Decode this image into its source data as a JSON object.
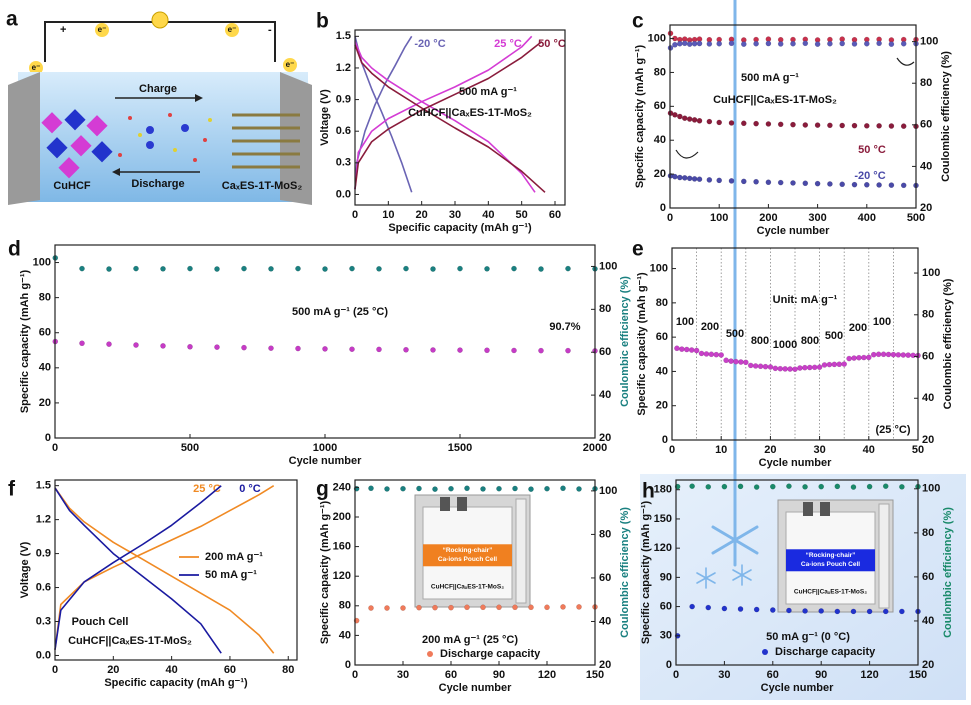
{
  "chart_data": [
    {
      "type": "diagram",
      "panel": "a",
      "labels": {
        "plus": "+",
        "minus": "-",
        "electron": "e⁻",
        "charge": "Charge",
        "discharge": "Discharge",
        "cathode": "CuHCF",
        "anode": "CaₓES-1T-MoS₂"
      }
    },
    {
      "type": "line",
      "panel": "b",
      "xlabel": "Specific capacity (mAh g⁻¹)",
      "ylabel": "Voltage (V)",
      "xlim": [
        0,
        63
      ],
      "ylim": [
        -0.1,
        1.56
      ],
      "xticks": [
        0,
        10,
        20,
        30,
        40,
        50,
        60
      ],
      "yticks": [
        {
          "value": 0,
          "label": "0.0"
        },
        0.3,
        0.6,
        0.9,
        1.2,
        1.5
      ],
      "legend": "direct",
      "annotations": [
        "500 mA g⁻¹",
        "CuHCF||CaₓES-1T-MoS₂"
      ],
      "series": [
        {
          "name": "-20 °C",
          "color": "#6a64b4",
          "x": [
            0,
            0.5,
            3,
            6,
            9,
            12,
            15,
            17,
            null,
            0,
            2,
            5,
            8,
            11,
            14,
            17
          ],
          "values": [
            0.05,
            0.3,
            0.6,
            0.85,
            1.05,
            1.22,
            1.4,
            1.5,
            null,
            1.5,
            1.25,
            1.0,
            0.78,
            0.55,
            0.3,
            0.02
          ]
        },
        {
          "name": "25 °C",
          "color": "#d43cd4",
          "x": [
            0,
            1,
            5,
            10,
            20,
            30,
            40,
            50,
            53,
            null,
            0,
            2,
            5,
            10,
            20,
            30,
            40,
            50,
            54
          ],
          "values": [
            0.05,
            0.4,
            0.6,
            0.72,
            0.88,
            1.02,
            1.18,
            1.4,
            1.5,
            null,
            1.45,
            1.3,
            1.2,
            1.08,
            0.88,
            0.7,
            0.5,
            0.2,
            0.02
          ]
        },
        {
          "name": "50 °C",
          "color": "#8a1c3c",
          "x": [
            0,
            1,
            5,
            10,
            20,
            30,
            40,
            50,
            56,
            null,
            0,
            2,
            5,
            10,
            20,
            30,
            40,
            50,
            57
          ],
          "values": [
            0.05,
            0.3,
            0.5,
            0.62,
            0.8,
            0.95,
            1.1,
            1.3,
            1.45,
            null,
            1.42,
            1.25,
            1.15,
            1.02,
            0.82,
            0.63,
            0.45,
            0.22,
            0.02
          ]
        }
      ]
    },
    {
      "type": "scatter",
      "panel": "c",
      "xlabel": "Cycle number",
      "ylabel": "Specific capacity (mAh g⁻¹)",
      "y2label": "Coulombic efficiency (%)",
      "xlim": [
        0,
        500
      ],
      "ylim": [
        0,
        108
      ],
      "y2lim": [
        20,
        108
      ],
      "xticks": [
        0,
        100,
        200,
        300,
        400,
        500
      ],
      "yticks": [
        0,
        20,
        40,
        60,
        80,
        100
      ],
      "y2ticks": [
        20,
        40,
        60,
        80,
        100
      ],
      "legend": "direct",
      "annotations": [
        "500 mA g⁻¹",
        "CuHCF||CaₓES-1T-MoS₂"
      ],
      "x": [
        1,
        10,
        20,
        30,
        40,
        50,
        60,
        80,
        100,
        125,
        150,
        175,
        200,
        225,
        250,
        275,
        300,
        325,
        350,
        375,
        400,
        425,
        450,
        475,
        500
      ],
      "series": [
        {
          "name": "50 °C",
          "color": "#8a1c3c",
          "values": [
            56,
            55,
            54,
            53,
            52.5,
            52,
            51.5,
            51,
            50.5,
            50.2,
            50,
            49.8,
            49.6,
            49.4,
            49.2,
            49,
            48.9,
            48.8,
            48.7,
            48.6,
            48.5,
            48.5,
            48.4,
            48.3,
            48.2
          ]
        },
        {
          "color": "#c8304c",
          "axis": "y2",
          "values": [
            104,
            101.5,
            101,
            101.2,
            100.8,
            101,
            101.2,
            100.9,
            101,
            101.1,
            100.8,
            101,
            101.2,
            100.9,
            101,
            101.1,
            100.8,
            101,
            101.2,
            100.9,
            101,
            101.1,
            100.8,
            101,
            101
          ]
        },
        {
          "name": "-20 °C",
          "color": "#4a4aa8",
          "values": [
            19,
            18.5,
            18,
            17.8,
            17.5,
            17.2,
            17,
            16.6,
            16.3,
            16,
            15.7,
            15.5,
            15.2,
            15,
            14.8,
            14.6,
            14.4,
            14.2,
            14,
            13.8,
            13.7,
            13.6,
            13.5,
            13.4,
            13.3
          ]
        },
        {
          "color": "#5a5ab8",
          "axis": "y2",
          "values": [
            97,
            98.5,
            99,
            99.2,
            98.8,
            99,
            99.1,
            98.9,
            99,
            99.2,
            98.8,
            99,
            99.1,
            98.9,
            99,
            99.2,
            98.8,
            99,
            99.1,
            98.9,
            99,
            99.2,
            98.8,
            99,
            99
          ]
        }
      ]
    },
    {
      "type": "scatter",
      "panel": "d",
      "xlabel": "Cycle number",
      "ylabel": "Specific capacity (mAh g⁻¹)",
      "y2label": "Coulombic efficiency (%)",
      "y2label_color": "#1a8080",
      "xlim": [
        0,
        2000
      ],
      "ylim": [
        0,
        110
      ],
      "y2lim": [
        20,
        110
      ],
      "xticks": [
        0,
        500,
        1000,
        1500,
        2000
      ],
      "yticks": [
        0,
        20,
        40,
        60,
        80,
        100
      ],
      "y2ticks": [
        20,
        40,
        60,
        80,
        100
      ],
      "annotations": [
        "500 mA g⁻¹ (25 °C)",
        "90.7%"
      ],
      "x": [
        1,
        100,
        200,
        300,
        400,
        500,
        600,
        700,
        800,
        900,
        1000,
        1100,
        1200,
        1300,
        1400,
        1500,
        1600,
        1700,
        1800,
        1900,
        2000
      ],
      "series": [
        {
          "color": "#c63bc6",
          "values": [
            55,
            54,
            53.5,
            53,
            52.5,
            52,
            51.8,
            51.5,
            51.2,
            51,
            50.8,
            50.6,
            50.5,
            50.3,
            50.2,
            50.1,
            50,
            49.9,
            49.8,
            49.8,
            49.7
          ]
        },
        {
          "color": "#1a8080",
          "axis": "y2",
          "values": [
            104,
            99,
            98.8,
            99,
            98.9,
            99,
            98.8,
            99,
            98.9,
            99,
            98.8,
            99,
            98.9,
            99,
            98.8,
            99,
            98.9,
            99,
            98.8,
            99,
            98.9
          ]
        }
      ]
    },
    {
      "type": "scatter",
      "panel": "e",
      "xlabel": "Cycle number",
      "ylabel": "Specific capacity (mAh g⁻¹)",
      "y2label": "Coulombic efficiency (%)",
      "xlim": [
        0,
        50
      ],
      "ylim": [
        0,
        112
      ],
      "y2lim": [
        20,
        112
      ],
      "xticks": [
        0,
        10,
        20,
        30,
        40,
        50
      ],
      "yticks": [
        0,
        20,
        40,
        60,
        80,
        100
      ],
      "y2ticks": [
        20,
        40,
        60,
        80,
        100
      ],
      "vlines": [
        5,
        10,
        15,
        20,
        25,
        30,
        35,
        40,
        45
      ],
      "annotations": [
        "Unit: mA g⁻¹",
        "(25 °C)",
        "100",
        "200",
        "500",
        "800",
        "1000",
        "800",
        "500",
        "200",
        "100"
      ],
      "x": [
        1,
        2,
        3,
        4,
        5,
        6,
        7,
        8,
        9,
        10,
        11,
        12,
        13,
        14,
        15,
        16,
        17,
        18,
        19,
        20,
        21,
        22,
        23,
        24,
        25,
        26,
        27,
        28,
        29,
        30,
        31,
        32,
        33,
        34,
        35,
        36,
        37,
        38,
        39,
        40,
        41,
        42,
        43,
        44,
        45,
        46,
        47,
        48,
        49,
        50
      ],
      "series": [
        {
          "color": "#c840c8",
          "values": [
            53.5,
            53,
            52.8,
            52.5,
            52.2,
            50.5,
            50.2,
            50,
            49.8,
            49.6,
            46.5,
            46,
            45.7,
            45.5,
            45.3,
            43.5,
            43.2,
            43,
            42.8,
            42.6,
            41.8,
            41.6,
            41.5,
            41.4,
            41.3,
            42,
            42.2,
            42.3,
            42.4,
            42.5,
            43.8,
            44,
            44.1,
            44.2,
            44.3,
            47.5,
            47.8,
            48,
            48.1,
            48.2,
            49.8,
            50,
            50,
            49.9,
            49.8,
            49.7,
            49.6,
            49.5,
            49.4,
            49.3
          ]
        }
      ]
    },
    {
      "type": "line",
      "panel": "f",
      "xlabel": "Specific capacity (mAh g⁻¹)",
      "ylabel": "Voltage (V)",
      "xlim": [
        0,
        83
      ],
      "ylim": [
        -0.04,
        1.55
      ],
      "xticks": [
        0,
        20,
        40,
        60,
        80
      ],
      "yticks": [
        {
          "value": 0,
          "label": "0.0"
        },
        0.3,
        0.6,
        0.9,
        1.2,
        1.5
      ],
      "legend": "center right",
      "annotations": [
        "Pouch Cell",
        "CuHCF||CaₓES-1T-MoS₂"
      ],
      "series": [
        {
          "name": "200 mA g⁻¹",
          "label": "25 °C",
          "color": "#f08a24",
          "x": [
            0,
            2,
            10,
            20,
            30,
            40,
            50,
            60,
            70,
            75,
            null,
            0,
            5,
            10,
            20,
            30,
            40,
            50,
            60,
            70,
            75
          ],
          "values": [
            0.05,
            0.45,
            0.65,
            0.78,
            0.9,
            1.02,
            1.14,
            1.28,
            1.42,
            1.5,
            null,
            1.48,
            1.3,
            1.18,
            1.0,
            0.85,
            0.7,
            0.55,
            0.4,
            0.18,
            0.02
          ]
        },
        {
          "name": "50 mA g⁻¹",
          "label": "0 °C",
          "color": "#1a1aa0",
          "x": [
            0,
            2,
            10,
            20,
            30,
            40,
            50,
            57,
            null,
            0,
            5,
            10,
            20,
            30,
            40,
            50,
            57
          ],
          "values": [
            0.05,
            0.4,
            0.65,
            0.82,
            0.98,
            1.15,
            1.35,
            1.5,
            null,
            1.48,
            1.28,
            1.15,
            0.9,
            0.7,
            0.5,
            0.28,
            0.02
          ]
        }
      ]
    },
    {
      "type": "scatter",
      "panel": "g",
      "xlabel": "Cycle number",
      "ylabel": "Specific capacity (mAh g⁻¹)",
      "y2label": "Coulombic efficiency (%)",
      "y2label_color": "#1a8080",
      "xlim": [
        0,
        150
      ],
      "ylim": [
        0,
        250
      ],
      "y2lim": [
        20,
        105
      ],
      "xticks": [
        0,
        30,
        60,
        90,
        120,
        150
      ],
      "yticks": [
        0,
        40,
        80,
        120,
        160,
        200,
        240
      ],
      "y2ticks": [
        20,
        40,
        60,
        80,
        100
      ],
      "legend": "lower center",
      "annotations": [
        "200 mA g⁻¹ (25 °C)"
      ],
      "inset": {
        "title": "“Rocking-chair”",
        "subtitle": "Ca-ions Pouch Cell",
        "label": "CuHCF||CaₓES-1T-MoS₂",
        "color": "#f08020"
      },
      "x": [
        1,
        10,
        20,
        30,
        40,
        50,
        60,
        70,
        80,
        90,
        100,
        110,
        120,
        130,
        140,
        150
      ],
      "series": [
        {
          "name": "Discharge capacity",
          "color": "#f07a5a",
          "values": [
            60,
            77,
            77,
            77,
            77.5,
            77.5,
            77.5,
            78,
            78,
            78,
            78,
            78,
            78,
            78.5,
            78.5,
            78.5
          ]
        },
        {
          "color": "#1a8080",
          "axis": "y2",
          "values": [
            101,
            101.2,
            100.9,
            101,
            101.1,
            100.8,
            101,
            101.2,
            100.9,
            101,
            101.1,
            100.8,
            101,
            101.2,
            100.9,
            101
          ]
        }
      ]
    },
    {
      "type": "scatter",
      "panel": "h",
      "xlabel": "Cycle number",
      "ylabel": "Specific capacity (mAh g⁻¹)",
      "y2label": "Coulombic efficiency (%)",
      "y2label_color": "#1a8a6a",
      "xlim": [
        0,
        150
      ],
      "ylim": [
        0,
        190
      ],
      "y2lim": [
        20,
        104
      ],
      "xticks": [
        0,
        30,
        60,
        90,
        120,
        150
      ],
      "yticks": [
        0,
        30,
        60,
        90,
        120,
        150,
        180
      ],
      "y2ticks": [
        20,
        40,
        60,
        80,
        100
      ],
      "legend": "lower center",
      "annotations": [
        "50 mA g⁻¹ (0 °C)"
      ],
      "inset": {
        "title": "“Rocking-chair”",
        "subtitle": "Ca-ions Pouch Cell",
        "label": "CuHCF||CaₓES-1T-MoS₂",
        "color": "#1a2ae0"
      },
      "x": [
        1,
        10,
        20,
        30,
        40,
        50,
        60,
        70,
        80,
        90,
        100,
        110,
        120,
        130,
        140,
        150
      ],
      "series": [
        {
          "name": "Discharge capacity",
          "color": "#2233cc",
          "values": [
            30,
            60,
            59,
            58,
            57.5,
            57,
            56.5,
            56,
            55.5,
            55.5,
            55,
            55,
            55,
            55,
            55,
            55
          ]
        },
        {
          "color": "#1a8a6a",
          "axis": "y2",
          "values": [
            101,
            101.2,
            100.9,
            101,
            101.1,
            100.8,
            101,
            101.2,
            100.9,
            101,
            101.1,
            100.8,
            101,
            101.2,
            100.9,
            101
          ]
        }
      ]
    }
  ]
}
